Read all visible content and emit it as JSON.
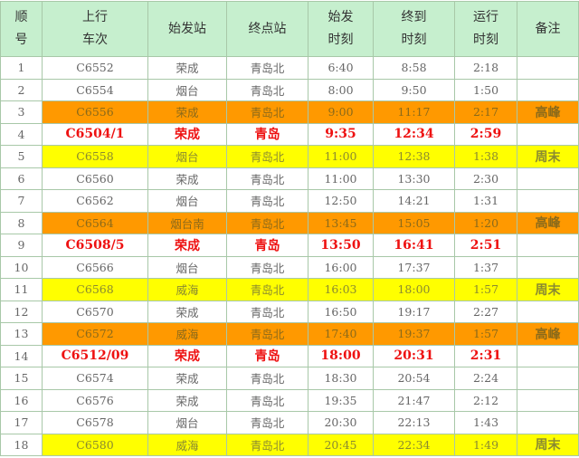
{
  "headers": [
    "顺\n号",
    "上行\n车次",
    "始发站",
    "终点站",
    "始发\n时刻",
    "终到\n时刻",
    "运行\n时刻",
    "备注"
  ],
  "colors": {
    "header": "#c6efce",
    "peak": "#ff9900",
    "weekend": "#ffff00",
    "special": "#ee1111"
  },
  "rows": [
    {
      "no": "1",
      "train": "C6552",
      "from": "荣成",
      "to": "青岛北",
      "dep": "6:40",
      "arr": "8:58",
      "dur": "2:18",
      "note": "",
      "style": "normal"
    },
    {
      "no": "2",
      "train": "C6554",
      "from": "烟台",
      "to": "青岛北",
      "dep": "8:00",
      "arr": "9:50",
      "dur": "1:50",
      "note": "",
      "style": "normal"
    },
    {
      "no": "3",
      "train": "C6556",
      "from": "荣成",
      "to": "青岛北",
      "dep": "9:00",
      "arr": "11:17",
      "dur": "2:17",
      "note": "高峰",
      "style": "orange"
    },
    {
      "no": "4",
      "train": "C6504/1",
      "from": "荣成",
      "to": "青岛",
      "dep": "9:35",
      "arr": "12:34",
      "dur": "2:59",
      "note": "",
      "style": "red"
    },
    {
      "no": "5",
      "train": "C6558",
      "from": "烟台",
      "to": "青岛北",
      "dep": "11:00",
      "arr": "12:38",
      "dur": "1:38",
      "note": "周末",
      "style": "yellow"
    },
    {
      "no": "6",
      "train": "C6560",
      "from": "荣成",
      "to": "青岛北",
      "dep": "11:00",
      "arr": "13:30",
      "dur": "2:30",
      "note": "",
      "style": "normal"
    },
    {
      "no": "7",
      "train": "C6562",
      "from": "烟台",
      "to": "青岛北",
      "dep": "12:50",
      "arr": "14:21",
      "dur": "1:31",
      "note": "",
      "style": "normal"
    },
    {
      "no": "8",
      "train": "C6564",
      "from": "烟台南",
      "to": "青岛北",
      "dep": "13:45",
      "arr": "15:05",
      "dur": "1:20",
      "note": "高峰",
      "style": "orange"
    },
    {
      "no": "9",
      "train": "C6508/5",
      "from": "荣成",
      "to": "青岛",
      "dep": "13:50",
      "arr": "16:41",
      "dur": "2:51",
      "note": "",
      "style": "red"
    },
    {
      "no": "10",
      "train": "C6566",
      "from": "烟台",
      "to": "青岛北",
      "dep": "16:00",
      "arr": "17:37",
      "dur": "1:37",
      "note": "",
      "style": "normal"
    },
    {
      "no": "11",
      "train": "C6568",
      "from": "威海",
      "to": "青岛北",
      "dep": "16:03",
      "arr": "18:00",
      "dur": "1:57",
      "note": "周末",
      "style": "yellow"
    },
    {
      "no": "12",
      "train": "C6570",
      "from": "荣成",
      "to": "青岛北",
      "dep": "16:50",
      "arr": "19:17",
      "dur": "2:27",
      "note": "",
      "style": "normal"
    },
    {
      "no": "13",
      "train": "C6572",
      "from": "威海",
      "to": "青岛北",
      "dep": "17:40",
      "arr": "19:37",
      "dur": "1:57",
      "note": "高峰",
      "style": "orange"
    },
    {
      "no": "14",
      "train": "C6512/09",
      "from": "荣成",
      "to": "青岛",
      "dep": "18:00",
      "arr": "20:31",
      "dur": "2:31",
      "note": "",
      "style": "red"
    },
    {
      "no": "15",
      "train": "C6574",
      "from": "荣成",
      "to": "青岛北",
      "dep": "18:30",
      "arr": "20:54",
      "dur": "2:24",
      "note": "",
      "style": "normal"
    },
    {
      "no": "16",
      "train": "C6576",
      "from": "荣成",
      "to": "青岛北",
      "dep": "19:35",
      "arr": "21:47",
      "dur": "2:12",
      "note": "",
      "style": "normal"
    },
    {
      "no": "17",
      "train": "C6578",
      "from": "烟台",
      "to": "青岛北",
      "dep": "20:30",
      "arr": "22:13",
      "dur": "1:43",
      "note": "",
      "style": "normal"
    },
    {
      "no": "18",
      "train": "C6580",
      "from": "威海",
      "to": "青岛北",
      "dep": "20:45",
      "arr": "22:34",
      "dur": "1:49",
      "note": "周末",
      "style": "yellow"
    }
  ]
}
